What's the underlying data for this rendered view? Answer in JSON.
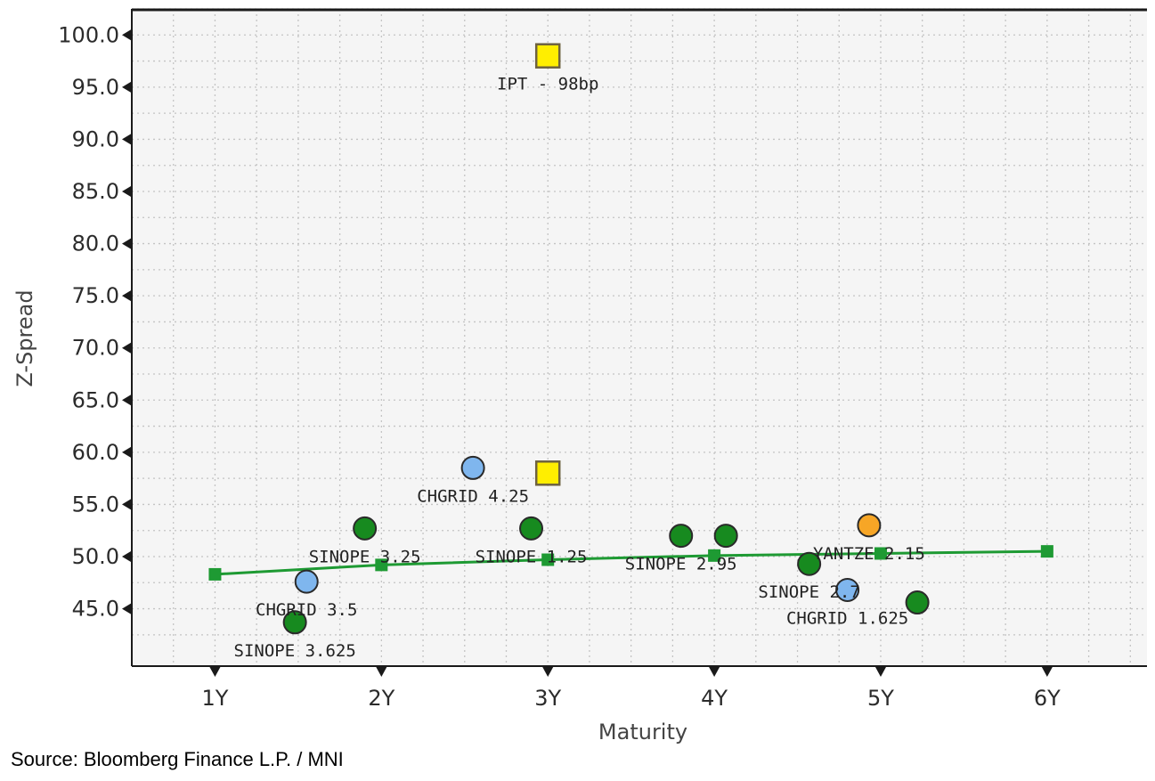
{
  "chart_data": {
    "type": "scatter",
    "title": "",
    "xlabel": "Maturity",
    "ylabel": "Z-Spread",
    "x_ticks": [
      {
        "value": 1,
        "label": "1Y"
      },
      {
        "value": 2,
        "label": "2Y"
      },
      {
        "value": 3,
        "label": "3Y"
      },
      {
        "value": 4,
        "label": "4Y"
      },
      {
        "value": 5,
        "label": "5Y"
      },
      {
        "value": 6,
        "label": "6Y"
      }
    ],
    "y_ticks": [
      {
        "value": 45,
        "label": "45.0"
      },
      {
        "value": 50,
        "label": "50.0"
      },
      {
        "value": 55,
        "label": "55.0"
      },
      {
        "value": 60,
        "label": "60.0"
      },
      {
        "value": 65,
        "label": "65.0"
      },
      {
        "value": 70,
        "label": "70.0"
      },
      {
        "value": 75,
        "label": "75.0"
      },
      {
        "value": 80,
        "label": "80.0"
      },
      {
        "value": 85,
        "label": "85.0"
      },
      {
        "value": 90,
        "label": "90.0"
      },
      {
        "value": 95,
        "label": "95.0"
      },
      {
        "value": 100,
        "label": "100.0"
      }
    ],
    "xlim": [
      0.5,
      6.6
    ],
    "ylim": [
      39.5,
      102.5
    ],
    "grid": true,
    "colors": {
      "green": "#178a1f",
      "blue": "#7fb6ee",
      "orange": "#f7a626",
      "yellow": "#ffee00",
      "curve": "#1e9a33"
    },
    "fitted_curve": [
      {
        "x": 1,
        "y": 48.3
      },
      {
        "x": 2,
        "y": 49.2
      },
      {
        "x": 3,
        "y": 49.7
      },
      {
        "x": 4,
        "y": 50.1
      },
      {
        "x": 5,
        "y": 50.3
      },
      {
        "x": 6,
        "y": 50.5
      }
    ],
    "points": [
      {
        "x": 3.0,
        "y": 98.0,
        "marker": "square",
        "color": "yellow",
        "label": "IPT - 98bp"
      },
      {
        "x": 3.0,
        "y": 58.0,
        "marker": "square",
        "color": "yellow",
        "label": ""
      },
      {
        "x": 2.55,
        "y": 58.5,
        "marker": "circle",
        "color": "blue",
        "label": "CHGRID 4.25"
      },
      {
        "x": 1.9,
        "y": 52.7,
        "marker": "circle",
        "color": "green",
        "label": "SINOPE 3.25"
      },
      {
        "x": 2.9,
        "y": 52.7,
        "marker": "circle",
        "color": "green",
        "label": "SINOPE 1.25"
      },
      {
        "x": 3.8,
        "y": 52.0,
        "marker": "circle",
        "color": "green",
        "label": "SINOPE 2.95"
      },
      {
        "x": 4.07,
        "y": 52.0,
        "marker": "circle",
        "color": "green",
        "label": ""
      },
      {
        "x": 4.93,
        "y": 53.0,
        "marker": "circle",
        "color": "orange",
        "label": "YANTZE 2.15"
      },
      {
        "x": 4.57,
        "y": 49.3,
        "marker": "circle",
        "color": "green",
        "label": "SINOPE 2.7"
      },
      {
        "x": 4.8,
        "y": 46.8,
        "marker": "circle",
        "color": "blue",
        "label": "CHGRID 1.625"
      },
      {
        "x": 5.22,
        "y": 45.6,
        "marker": "circle",
        "color": "green",
        "label": ""
      },
      {
        "x": 1.55,
        "y": 47.6,
        "marker": "circle",
        "color": "blue",
        "label": "CHGRID 3.5"
      },
      {
        "x": 1.48,
        "y": 43.7,
        "marker": "circle",
        "color": "green",
        "label": "SINOPE 3.625"
      }
    ]
  },
  "source": "Source: Bloomberg Finance L.P. / MNI"
}
